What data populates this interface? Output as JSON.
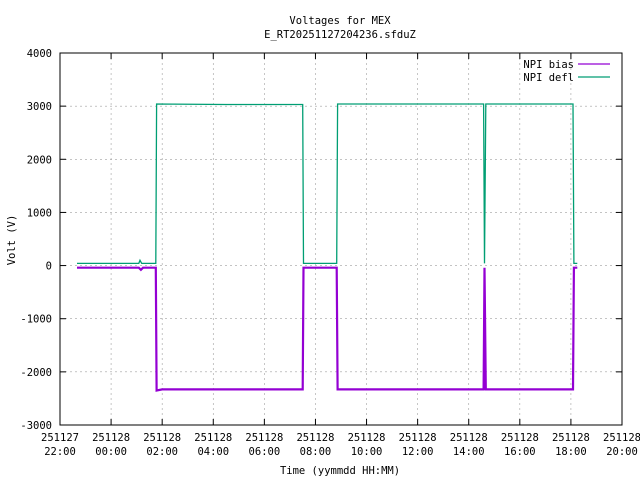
{
  "chart_data": {
    "type": "line",
    "title": "Voltages for MEX",
    "subtitle": "E_RT20251127204236.sfduZ",
    "xlabel": "Time (yymmdd HH:MM)",
    "ylabel": "Volt (V)",
    "xlim": [
      "2025-11-27 22:00",
      "2025-11-28 20:00"
    ],
    "ylim": [
      -3000,
      4000
    ],
    "grid": true,
    "legend_position": "top-right",
    "y_ticks": [
      "-3000",
      "-2000",
      "-1000",
      "0",
      "1000",
      "2000",
      "3000",
      "4000"
    ],
    "x_ticks": [
      {
        "date": "251127",
        "time": "22:00"
      },
      {
        "date": "251128",
        "time": "00:00"
      },
      {
        "date": "251128",
        "time": "02:00"
      },
      {
        "date": "251128",
        "time": "04:00"
      },
      {
        "date": "251128",
        "time": "06:00"
      },
      {
        "date": "251128",
        "time": "08:00"
      },
      {
        "date": "251128",
        "time": "10:00"
      },
      {
        "date": "251128",
        "time": "12:00"
      },
      {
        "date": "251128",
        "time": "14:00"
      },
      {
        "date": "251128",
        "time": "16:00"
      },
      {
        "date": "251128",
        "time": "18:00"
      },
      {
        "date": "251128",
        "time": "20:00"
      }
    ],
    "series": [
      {
        "name": "NPI bias",
        "color": "#9400d3",
        "points": [
          [
            "2025-11-27 22:40",
            -40
          ],
          [
            "2025-11-28 01:05",
            -40
          ],
          [
            "2025-11-28 01:10",
            -80
          ],
          [
            "2025-11-28 01:15",
            -40
          ],
          [
            "2025-11-28 01:45",
            -40
          ],
          [
            "2025-11-28 01:47",
            -2350
          ],
          [
            "2025-11-28 02:00",
            -2330
          ],
          [
            "2025-11-28 04:30",
            -2330
          ],
          [
            "2025-11-28 07:30",
            -2330
          ],
          [
            "2025-11-28 07:32",
            -40
          ],
          [
            "2025-11-28 08:50",
            -40
          ],
          [
            "2025-11-28 08:52",
            -2330
          ],
          [
            "2025-11-28 12:00",
            -2330
          ],
          [
            "2025-11-28 14:35",
            -2330
          ],
          [
            "2025-11-28 14:37",
            -40
          ],
          [
            "2025-11-28 14:40",
            -2330
          ],
          [
            "2025-11-28 18:05",
            -2330
          ],
          [
            "2025-11-28 18:07",
            -40
          ],
          [
            "2025-11-28 18:15",
            -40
          ]
        ]
      },
      {
        "name": "NPI defl",
        "color": "#009e73",
        "points": [
          [
            "2025-11-27 22:40",
            40
          ],
          [
            "2025-11-28 01:05",
            40
          ],
          [
            "2025-11-28 01:08",
            100
          ],
          [
            "2025-11-28 01:12",
            40
          ],
          [
            "2025-11-28 01:45",
            40
          ],
          [
            "2025-11-28 01:47",
            3040
          ],
          [
            "2025-11-28 04:30",
            3030
          ],
          [
            "2025-11-28 07:30",
            3030
          ],
          [
            "2025-11-28 07:32",
            40
          ],
          [
            "2025-11-28 08:50",
            40
          ],
          [
            "2025-11-28 08:52",
            3040
          ],
          [
            "2025-11-28 12:00",
            3040
          ],
          [
            "2025-11-28 14:35",
            3040
          ],
          [
            "2025-11-28 14:37",
            40
          ],
          [
            "2025-11-28 14:40",
            3040
          ],
          [
            "2025-11-28 18:05",
            3040
          ],
          [
            "2025-11-28 18:07",
            40
          ],
          [
            "2025-11-28 18:15",
            40
          ]
        ]
      }
    ]
  }
}
